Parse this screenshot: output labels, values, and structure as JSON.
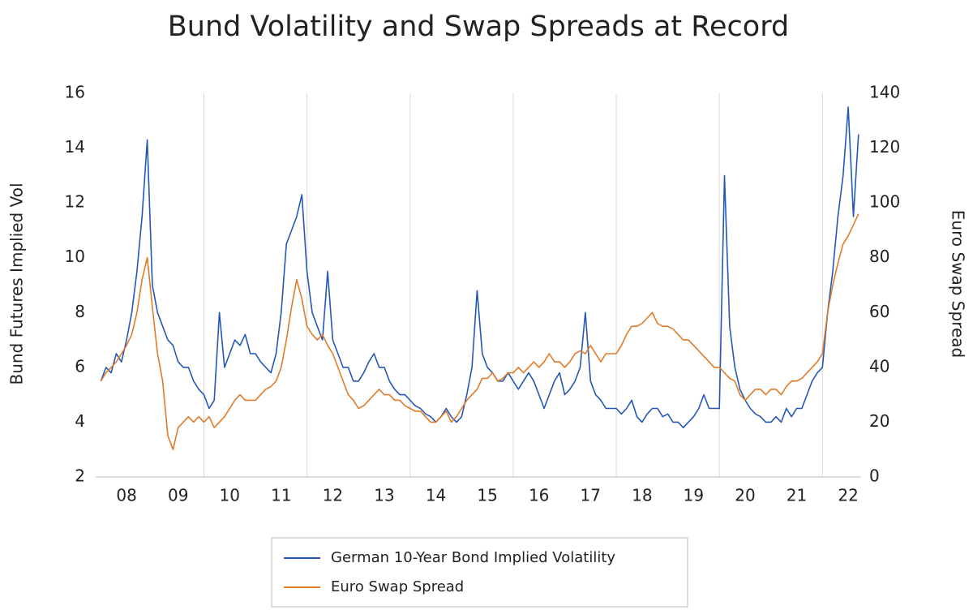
{
  "chart_data": {
    "type": "line",
    "title": "Bund Volatility and Swap Spreads at Record",
    "y_label": "Bund Futures Implied Vol",
    "y2_label": "Euro Swap Spread",
    "x": [
      2008.0,
      2008.1,
      2008.2,
      2008.3,
      2008.4,
      2008.5,
      2008.6,
      2008.7,
      2008.8,
      2008.9,
      2009.0,
      2009.1,
      2009.2,
      2009.3,
      2009.4,
      2009.5,
      2009.6,
      2009.7,
      2009.8,
      2009.9,
      2010.0,
      2010.1,
      2010.2,
      2010.3,
      2010.4,
      2010.5,
      2010.6,
      2010.7,
      2010.8,
      2010.9,
      2011.0,
      2011.1,
      2011.2,
      2011.3,
      2011.4,
      2011.5,
      2011.6,
      2011.7,
      2011.8,
      2011.9,
      2012.0,
      2012.1,
      2012.2,
      2012.3,
      2012.4,
      2012.5,
      2012.6,
      2012.7,
      2012.8,
      2012.9,
      2013.0,
      2013.1,
      2013.2,
      2013.3,
      2013.4,
      2013.5,
      2013.6,
      2013.7,
      2013.8,
      2013.9,
      2014.0,
      2014.1,
      2014.2,
      2014.3,
      2014.4,
      2014.5,
      2014.6,
      2014.7,
      2014.8,
      2014.9,
      2015.0,
      2015.1,
      2015.2,
      2015.3,
      2015.4,
      2015.5,
      2015.6,
      2015.7,
      2015.8,
      2015.9,
      2016.0,
      2016.1,
      2016.2,
      2016.3,
      2016.4,
      2016.5,
      2016.6,
      2016.7,
      2016.8,
      2016.9,
      2017.0,
      2017.1,
      2017.2,
      2017.3,
      2017.4,
      2017.5,
      2017.6,
      2017.7,
      2017.8,
      2017.9,
      2018.0,
      2018.1,
      2018.2,
      2018.3,
      2018.4,
      2018.5,
      2018.6,
      2018.7,
      2018.8,
      2018.9,
      2019.0,
      2019.1,
      2019.2,
      2019.3,
      2019.4,
      2019.5,
      2019.6,
      2019.7,
      2019.8,
      2019.9,
      2020.0,
      2020.1,
      2020.2,
      2020.3,
      2020.4,
      2020.5,
      2020.6,
      2020.7,
      2020.8,
      2020.9,
      2021.0,
      2021.1,
      2021.2,
      2021.3,
      2021.4,
      2021.5,
      2021.6,
      2021.7,
      2021.8,
      2021.9,
      2022.0,
      2022.1,
      2022.2,
      2022.3,
      2022.4,
      2022.5,
      2022.6,
      2022.7
    ],
    "series": [
      {
        "name": "German 10-Year Bond Implied Volatility",
        "color": "#2458b8",
        "axis": "y",
        "values": [
          5.5,
          6.0,
          5.8,
          6.5,
          6.2,
          7.0,
          8.0,
          9.5,
          11.5,
          14.3,
          9.0,
          8.0,
          7.5,
          7.0,
          6.8,
          6.2,
          6.0,
          6.0,
          5.5,
          5.2,
          5.0,
          4.5,
          4.8,
          8.0,
          6.0,
          6.5,
          7.0,
          6.8,
          7.2,
          6.5,
          6.5,
          6.2,
          6.0,
          5.8,
          6.5,
          8.0,
          10.5,
          11.0,
          11.5,
          12.3,
          9.5,
          8.0,
          7.5,
          7.0,
          9.5,
          7.0,
          6.5,
          6.0,
          6.0,
          5.5,
          5.5,
          5.8,
          6.2,
          6.5,
          6.0,
          6.0,
          5.5,
          5.2,
          5.0,
          5.0,
          4.8,
          4.6,
          4.5,
          4.3,
          4.2,
          4.0,
          4.2,
          4.5,
          4.2,
          4.0,
          4.2,
          5.0,
          6.0,
          8.8,
          6.5,
          6.0,
          5.8,
          5.5,
          5.5,
          5.8,
          5.5,
          5.2,
          5.5,
          5.8,
          5.5,
          5.0,
          4.5,
          5.0,
          5.5,
          5.8,
          5.0,
          5.2,
          5.5,
          6.0,
          8.0,
          5.5,
          5.0,
          4.8,
          4.5,
          4.5,
          4.5,
          4.3,
          4.5,
          4.8,
          4.2,
          4.0,
          4.3,
          4.5,
          4.5,
          4.2,
          4.3,
          4.0,
          4.0,
          3.8,
          4.0,
          4.2,
          4.5,
          5.0,
          4.5,
          4.5,
          4.5,
          13.0,
          7.5,
          6.0,
          5.2,
          4.8,
          4.5,
          4.3,
          4.2,
          4.0,
          4.0,
          4.2,
          4.0,
          4.5,
          4.2,
          4.5,
          4.5,
          5.0,
          5.5,
          5.8,
          6.0,
          8.0,
          9.5,
          11.5,
          13.0,
          15.5,
          11.5,
          14.5
        ]
      },
      {
        "name": "Euro Swap Spread",
        "color": "#e07b2a",
        "axis": "y2",
        "values": [
          35,
          38,
          40,
          42,
          45,
          48,
          52,
          60,
          72,
          80,
          62,
          45,
          35,
          15,
          10,
          18,
          20,
          22,
          20,
          22,
          20,
          22,
          18,
          20,
          22,
          25,
          28,
          30,
          28,
          28,
          28,
          30,
          32,
          33,
          35,
          40,
          50,
          62,
          72,
          65,
          55,
          52,
          50,
          52,
          48,
          45,
          40,
          35,
          30,
          28,
          25,
          26,
          28,
          30,
          32,
          30,
          30,
          28,
          28,
          26,
          25,
          24,
          24,
          22,
          20,
          20,
          22,
          24,
          20,
          22,
          25,
          28,
          30,
          32,
          36,
          36,
          38,
          35,
          36,
          38,
          38,
          40,
          38,
          40,
          42,
          40,
          42,
          45,
          42,
          42,
          40,
          42,
          45,
          46,
          45,
          48,
          45,
          42,
          45,
          45,
          45,
          48,
          52,
          55,
          55,
          56,
          58,
          60,
          56,
          55,
          55,
          54,
          52,
          50,
          50,
          48,
          46,
          44,
          42,
          40,
          40,
          38,
          36,
          35,
          30,
          28,
          30,
          32,
          32,
          30,
          32,
          32,
          30,
          33,
          35,
          35,
          36,
          38,
          40,
          42,
          45,
          60,
          70,
          78,
          85,
          88,
          92,
          96
        ]
      }
    ],
    "xlim": [
      2007.9,
      2022.75
    ],
    "xticks": [
      {
        "value": 2008,
        "label": "08"
      },
      {
        "value": 2009,
        "label": "09"
      },
      {
        "value": 2010,
        "label": "10"
      },
      {
        "value": 2011,
        "label": "11"
      },
      {
        "value": 2012,
        "label": "12"
      },
      {
        "value": 2013,
        "label": "13"
      },
      {
        "value": 2014,
        "label": "14"
      },
      {
        "value": 2015,
        "label": "15"
      },
      {
        "value": 2016,
        "label": "16"
      },
      {
        "value": 2017,
        "label": "17"
      },
      {
        "value": 2018,
        "label": "18"
      },
      {
        "value": 2019,
        "label": "19"
      },
      {
        "value": 2020,
        "label": "20"
      },
      {
        "value": 2021,
        "label": "21"
      },
      {
        "value": 2022,
        "label": "22"
      }
    ],
    "ylim": [
      2,
      16
    ],
    "yticks": [
      2,
      4,
      6,
      8,
      10,
      12,
      14,
      16
    ],
    "y2lim": [
      0,
      140
    ],
    "y2ticks": [
      0,
      20,
      40,
      60,
      80,
      100,
      120,
      140
    ],
    "grid": true,
    "legend": "bottom"
  }
}
